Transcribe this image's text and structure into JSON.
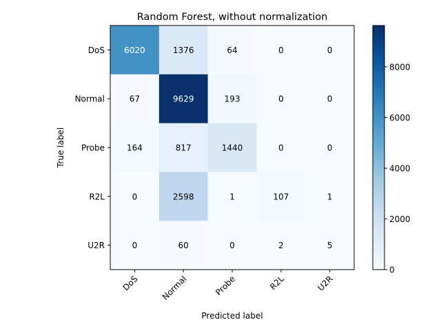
{
  "chart_data": {
    "type": "heatmap",
    "title": "Random Forest, without normalization",
    "xlabel": "Predicted label",
    "ylabel": "True label",
    "x_categories": [
      "DoS",
      "Normal",
      "Probe",
      "R2L",
      "U2R"
    ],
    "y_categories": [
      "DoS",
      "Normal",
      "Probe",
      "R2L",
      "U2R"
    ],
    "values": [
      [
        6020,
        1376,
        64,
        0,
        0
      ],
      [
        67,
        9629,
        193,
        0,
        0
      ],
      [
        164,
        817,
        1440,
        0,
        0
      ],
      [
        0,
        2598,
        1,
        107,
        1
      ],
      [
        0,
        60,
        0,
        2,
        5
      ]
    ],
    "colormap": "Blues",
    "vmin": 0,
    "vmax": 9629,
    "colorbar_ticks": [
      0,
      2000,
      4000,
      6000,
      8000
    ],
    "text_threshold": 4814.5,
    "text_colors": {
      "light": "#ffffff",
      "dark": "#000000"
    }
  }
}
